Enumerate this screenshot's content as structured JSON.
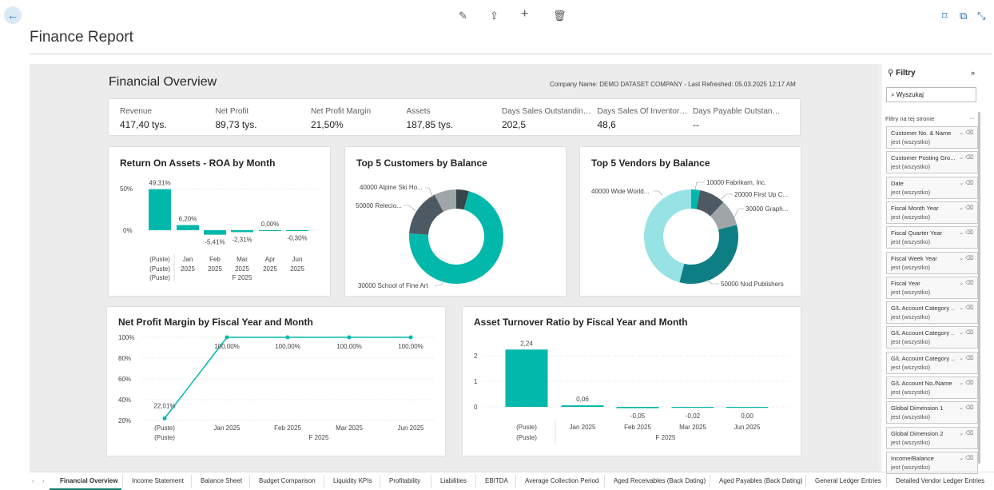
{
  "page": {
    "title": "Finance Report"
  },
  "report": {
    "title": "Financial Overview",
    "meta": "Company Name: DEMO DATASET COMPANY - Last Refreshed: 05.03.2025 12:17 AM"
  },
  "kpis": [
    {
      "label": "Revenue",
      "value": "417,40 tys."
    },
    {
      "label": "Net Profit",
      "value": "89,73 tys."
    },
    {
      "label": "Net Profit Margin",
      "value": "21,50%"
    },
    {
      "label": "Assets",
      "value": "187,85 tys."
    },
    {
      "label": "Days Sales Outstanding -...",
      "value": "202,5"
    },
    {
      "label": "Days Sales Of Inventory -...",
      "value": "48,6"
    },
    {
      "label": "Days Payable Outstanding ...",
      "value": "--"
    }
  ],
  "colors": {
    "teal": "#01b8aa",
    "dark": "#374649",
    "grey": "#a0a6a8",
    "darkteal": "#01858a",
    "light": "#96e2e5",
    "teal2": "#0d7e83"
  },
  "chart_data": [
    {
      "type": "bar",
      "title": "Return On Assets - ROA by Month",
      "categories": [
        "(Puste)",
        "Jan 2025",
        "Feb 2025",
        "Mar 2025",
        "Apr 2025",
        "Jun 2025"
      ],
      "values": [
        49.31,
        6.2,
        -5.41,
        -2.31,
        0.0,
        -0.3
      ],
      "labels": [
        "49,31%",
        "6,20%",
        "-5,41%",
        "-2,31%",
        "0,00%",
        "-0,30%"
      ],
      "yticks": [
        "50%",
        "0%"
      ],
      "xtop": [
        "(Puste)",
        "Jan",
        "Feb",
        "Mar",
        "Apr",
        "Jun"
      ],
      "xbottom": [
        "(Puste)",
        "2025",
        "2025",
        "2025",
        "2025",
        "2025"
      ],
      "xgroup": "F 2025"
    },
    {
      "type": "pie",
      "title": "Top 5 Customers by Balance",
      "slices": [
        {
          "label": "30000 School of Fine Art",
          "value": 66
        },
        {
          "label": "50000 Relecloud",
          "value": 15
        },
        {
          "label": "40000 Alpine Ski House",
          "value": 7
        },
        {
          "label": "other",
          "value": 4
        }
      ],
      "labels": [
        "40000 Alpine Ski Ho...",
        "50000 Relecio...",
        "30000 School of Fine Art"
      ]
    },
    {
      "type": "pie",
      "title": "Top 5 Vendors by Balance",
      "slices": [
        {
          "label": "10000 Fabrikam, Inc.",
          "value": 3
        },
        {
          "label": "20000 First Up Consultants",
          "value": 9
        },
        {
          "label": "30000 Graphic Design Institute",
          "value": 9
        },
        {
          "label": "50000 Nod Publishers",
          "value": 33
        },
        {
          "label": "40000 Wide World Importers",
          "value": 46
        }
      ],
      "labels": [
        "10000 Fabrikam, Inc.",
        "20000 First Up C...",
        "30000 Graph...",
        "50000 Nod Publishers",
        "40000 Wide World..."
      ]
    },
    {
      "type": "line",
      "title": "Net Profit Margin by Fiscal Year and Month",
      "categories": [
        "(Puste)",
        "Jan 2025",
        "Feb 2025",
        "Mar 2025",
        "Jun 2025"
      ],
      "values": [
        22.01,
        100,
        100,
        100,
        100
      ],
      "labels": [
        "22,01%",
        "100,00%",
        "100,00%",
        "100,00%",
        "100,00%"
      ],
      "yticks": [
        "100%",
        "80%",
        "60%",
        "40%",
        "20%"
      ],
      "ylim": [
        20,
        100
      ],
      "xgroup": "F 2025"
    },
    {
      "type": "bar",
      "title": "Asset Turnover Ratio by Fiscal Year and Month",
      "categories": [
        "(Puste)",
        "Jan 2025",
        "Feb 2025",
        "Mar 2025",
        "Jun 2025"
      ],
      "values": [
        2.24,
        0.06,
        -0.05,
        -0.02,
        0.0
      ],
      "labels": [
        "2,24",
        "0,06",
        "-0,05",
        "-0,02",
        "0,00"
      ],
      "yticks": [
        "2",
        "1",
        "0"
      ],
      "xgroup": "F 2025"
    }
  ],
  "filters": {
    "title": "Filtry",
    "search": "Wyszukaj",
    "section": "Filtry na tej stronie",
    "items": [
      {
        "name": "Customer No. & Name",
        "value": "jest (wszystko)"
      },
      {
        "name": "Customer Posting Gro...",
        "value": "jest (wszystko)"
      },
      {
        "name": "Date",
        "value": "jest (wszystko)"
      },
      {
        "name": "Fiscal Month Year",
        "value": "jest (wszystko)"
      },
      {
        "name": "Fiscal Quarter Year",
        "value": "jest (wszystko)"
      },
      {
        "name": "Fiscal Week Year",
        "value": "jest (wszystko)"
      },
      {
        "name": "Fiscal Year",
        "value": "jest (wszystko)"
      },
      {
        "name": "G/L Account Category ...",
        "value": "jest (wszystko)"
      },
      {
        "name": "G/L Account Category ...",
        "value": "jest (wszystko)"
      },
      {
        "name": "G/L Account Category ...",
        "value": "jest (wszystko)"
      },
      {
        "name": "G/L Account No./Name",
        "value": "jest (wszystko)"
      },
      {
        "name": "Global Dimension 1",
        "value": "jest (wszystko)"
      },
      {
        "name": "Global Dimension 2",
        "value": "jest (wszystko)"
      },
      {
        "name": "Income/Balance",
        "value": "jest (wszystko)"
      }
    ]
  },
  "tabs": [
    "Financial Overview",
    "Income Statement",
    "Balance Sheet",
    "Budget Comparison",
    "Liquidity KPIs",
    "Profitability",
    "Liabilities",
    "EBITDA",
    "Average Collection Period",
    "Aged Receivables (Back Dating)",
    "Aged Payables (Back Dating)",
    "General Ledger Entries",
    "Detailed Vendor Ledger Entries"
  ]
}
